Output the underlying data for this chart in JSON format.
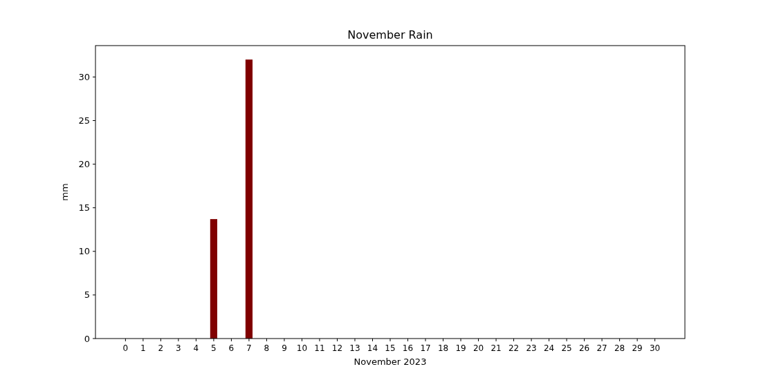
{
  "chart_data": {
    "type": "bar",
    "title": "November Rain",
    "xlabel": "November 2023",
    "ylabel": "mm",
    "x": [
      0,
      1,
      2,
      3,
      4,
      5,
      6,
      7,
      8,
      9,
      10,
      11,
      12,
      13,
      14,
      15,
      16,
      17,
      18,
      19,
      20,
      21,
      22,
      23,
      24,
      25,
      26,
      27,
      28,
      29,
      30
    ],
    "xlim": [
      -1.7,
      31.7
    ],
    "xticks": [
      0,
      1,
      2,
      3,
      4,
      5,
      6,
      7,
      8,
      9,
      10,
      11,
      12,
      13,
      14,
      15,
      16,
      17,
      18,
      19,
      20,
      21,
      22,
      23,
      24,
      25,
      26,
      27,
      28,
      29,
      30
    ],
    "values": [
      0,
      0,
      0,
      0,
      0,
      13.7,
      0,
      32,
      0,
      0,
      0,
      0,
      0,
      0,
      0,
      0,
      0,
      0,
      0,
      0,
      0,
      0,
      0,
      0,
      0,
      0,
      0,
      0,
      0,
      0,
      0
    ],
    "color": "#800000",
    "ylim": [
      0,
      33.6
    ],
    "yticks": [
      0,
      5,
      10,
      15,
      20,
      25,
      30
    ],
    "grid": false
  }
}
